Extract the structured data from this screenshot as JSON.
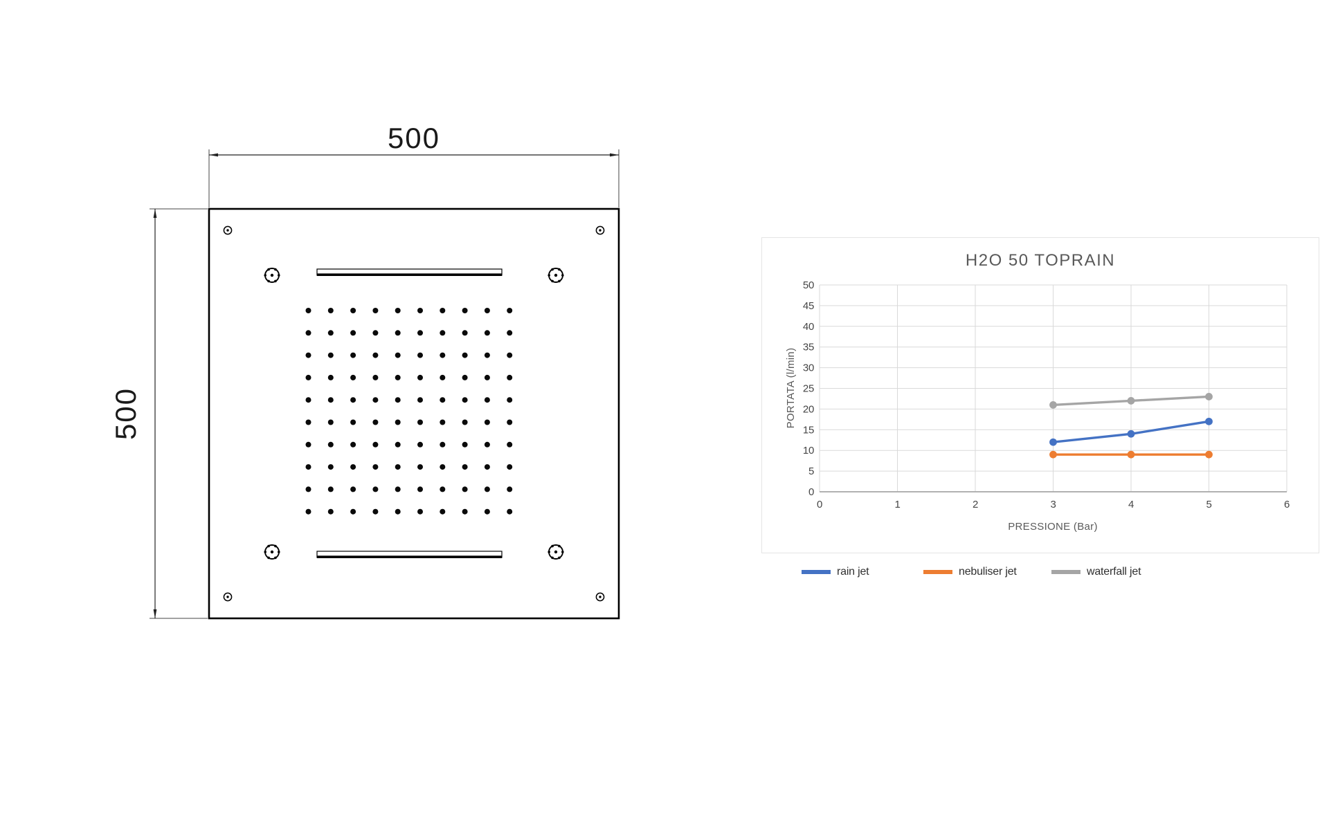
{
  "drawing": {
    "width_dim_label": "500",
    "height_dim_label": "500",
    "nozzle_grid": {
      "rows": 10,
      "cols": 10
    },
    "corner_screw_count": 4,
    "torx_screw_count": 4,
    "waterfall_slot_count": 2
  },
  "chart": {
    "title": "H2O 50 TOPRAIN",
    "x_axis_title": "PRESSIONE (Bar)",
    "y_axis_title": "PORTATA (l/min)"
  },
  "chart_data": {
    "type": "line",
    "title": "H2O 50 TOPRAIN",
    "xlabel": "PRESSIONE (Bar)",
    "ylabel": "PORTATA (l/min)",
    "xlim": [
      0,
      6
    ],
    "ylim": [
      0,
      50
    ],
    "xticks": [
      0,
      1,
      2,
      3,
      4,
      5,
      6
    ],
    "ytick_step": 5,
    "grid": true,
    "legend_position": "bottom",
    "x": [
      3,
      4,
      5
    ],
    "series": [
      {
        "name": "rain jet",
        "color": "#4472C4",
        "values": [
          12,
          14,
          17
        ]
      },
      {
        "name": "nebuliser jet",
        "color": "#ED7D31",
        "values": [
          9,
          9,
          9
        ]
      },
      {
        "name": "waterfall jet",
        "color": "#A5A5A5",
        "values": [
          21,
          22,
          23
        ]
      }
    ],
    "title_color": "#595959",
    "tick_color": "#454545",
    "gridline_color": "#D9D9D9",
    "axis_line_color": "#A6A6A6"
  }
}
